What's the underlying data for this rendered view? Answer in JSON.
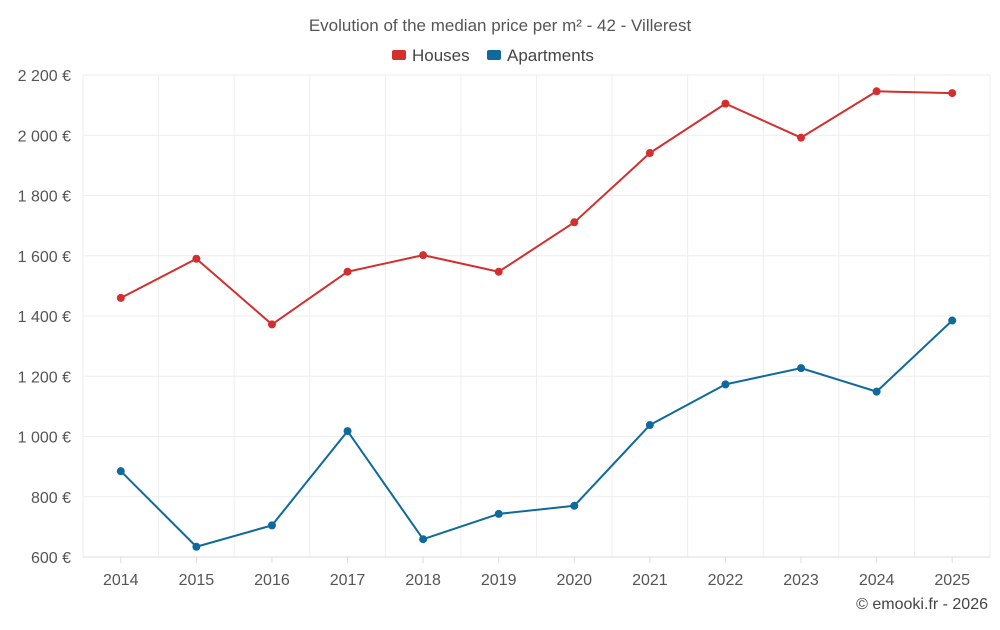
{
  "chart_data": {
    "type": "line",
    "title": "Evolution of the median price per m² - 42 - Villerest",
    "categories": [
      "2014",
      "2015",
      "2016",
      "2017",
      "2018",
      "2019",
      "2020",
      "2021",
      "2022",
      "2023",
      "2024",
      "2025"
    ],
    "series": [
      {
        "name": "Houses",
        "color": "#d32f2f",
        "values": [
          1460,
          1590,
          1372,
          1547,
          1602,
          1547,
          1711,
          1941,
          2105,
          1992,
          2146,
          2140
        ]
      },
      {
        "name": "Apartments",
        "color": "#0f6a9c",
        "values": [
          885,
          634,
          705,
          1018,
          659,
          743,
          770,
          1038,
          1173,
          1227,
          1149,
          1385
        ]
      }
    ],
    "ylim": [
      600,
      2200
    ],
    "y_ticks": [
      {
        "value": 600,
        "label": "600 €"
      },
      {
        "value": 800,
        "label": "800 €"
      },
      {
        "value": 1000,
        "label": "1 000 €"
      },
      {
        "value": 1200,
        "label": "1 200 €"
      },
      {
        "value": 1400,
        "label": "1 400 €"
      },
      {
        "value": 1600,
        "label": "1 600 €"
      },
      {
        "value": 1800,
        "label": "1 800 €"
      },
      {
        "value": 2000,
        "label": "2 000 €"
      },
      {
        "value": 2200,
        "label": "2 200 €"
      }
    ],
    "xlabel": "",
    "ylabel": "",
    "grid": true,
    "legend": "top-center"
  },
  "credit": "© emooki.fr - 2026"
}
